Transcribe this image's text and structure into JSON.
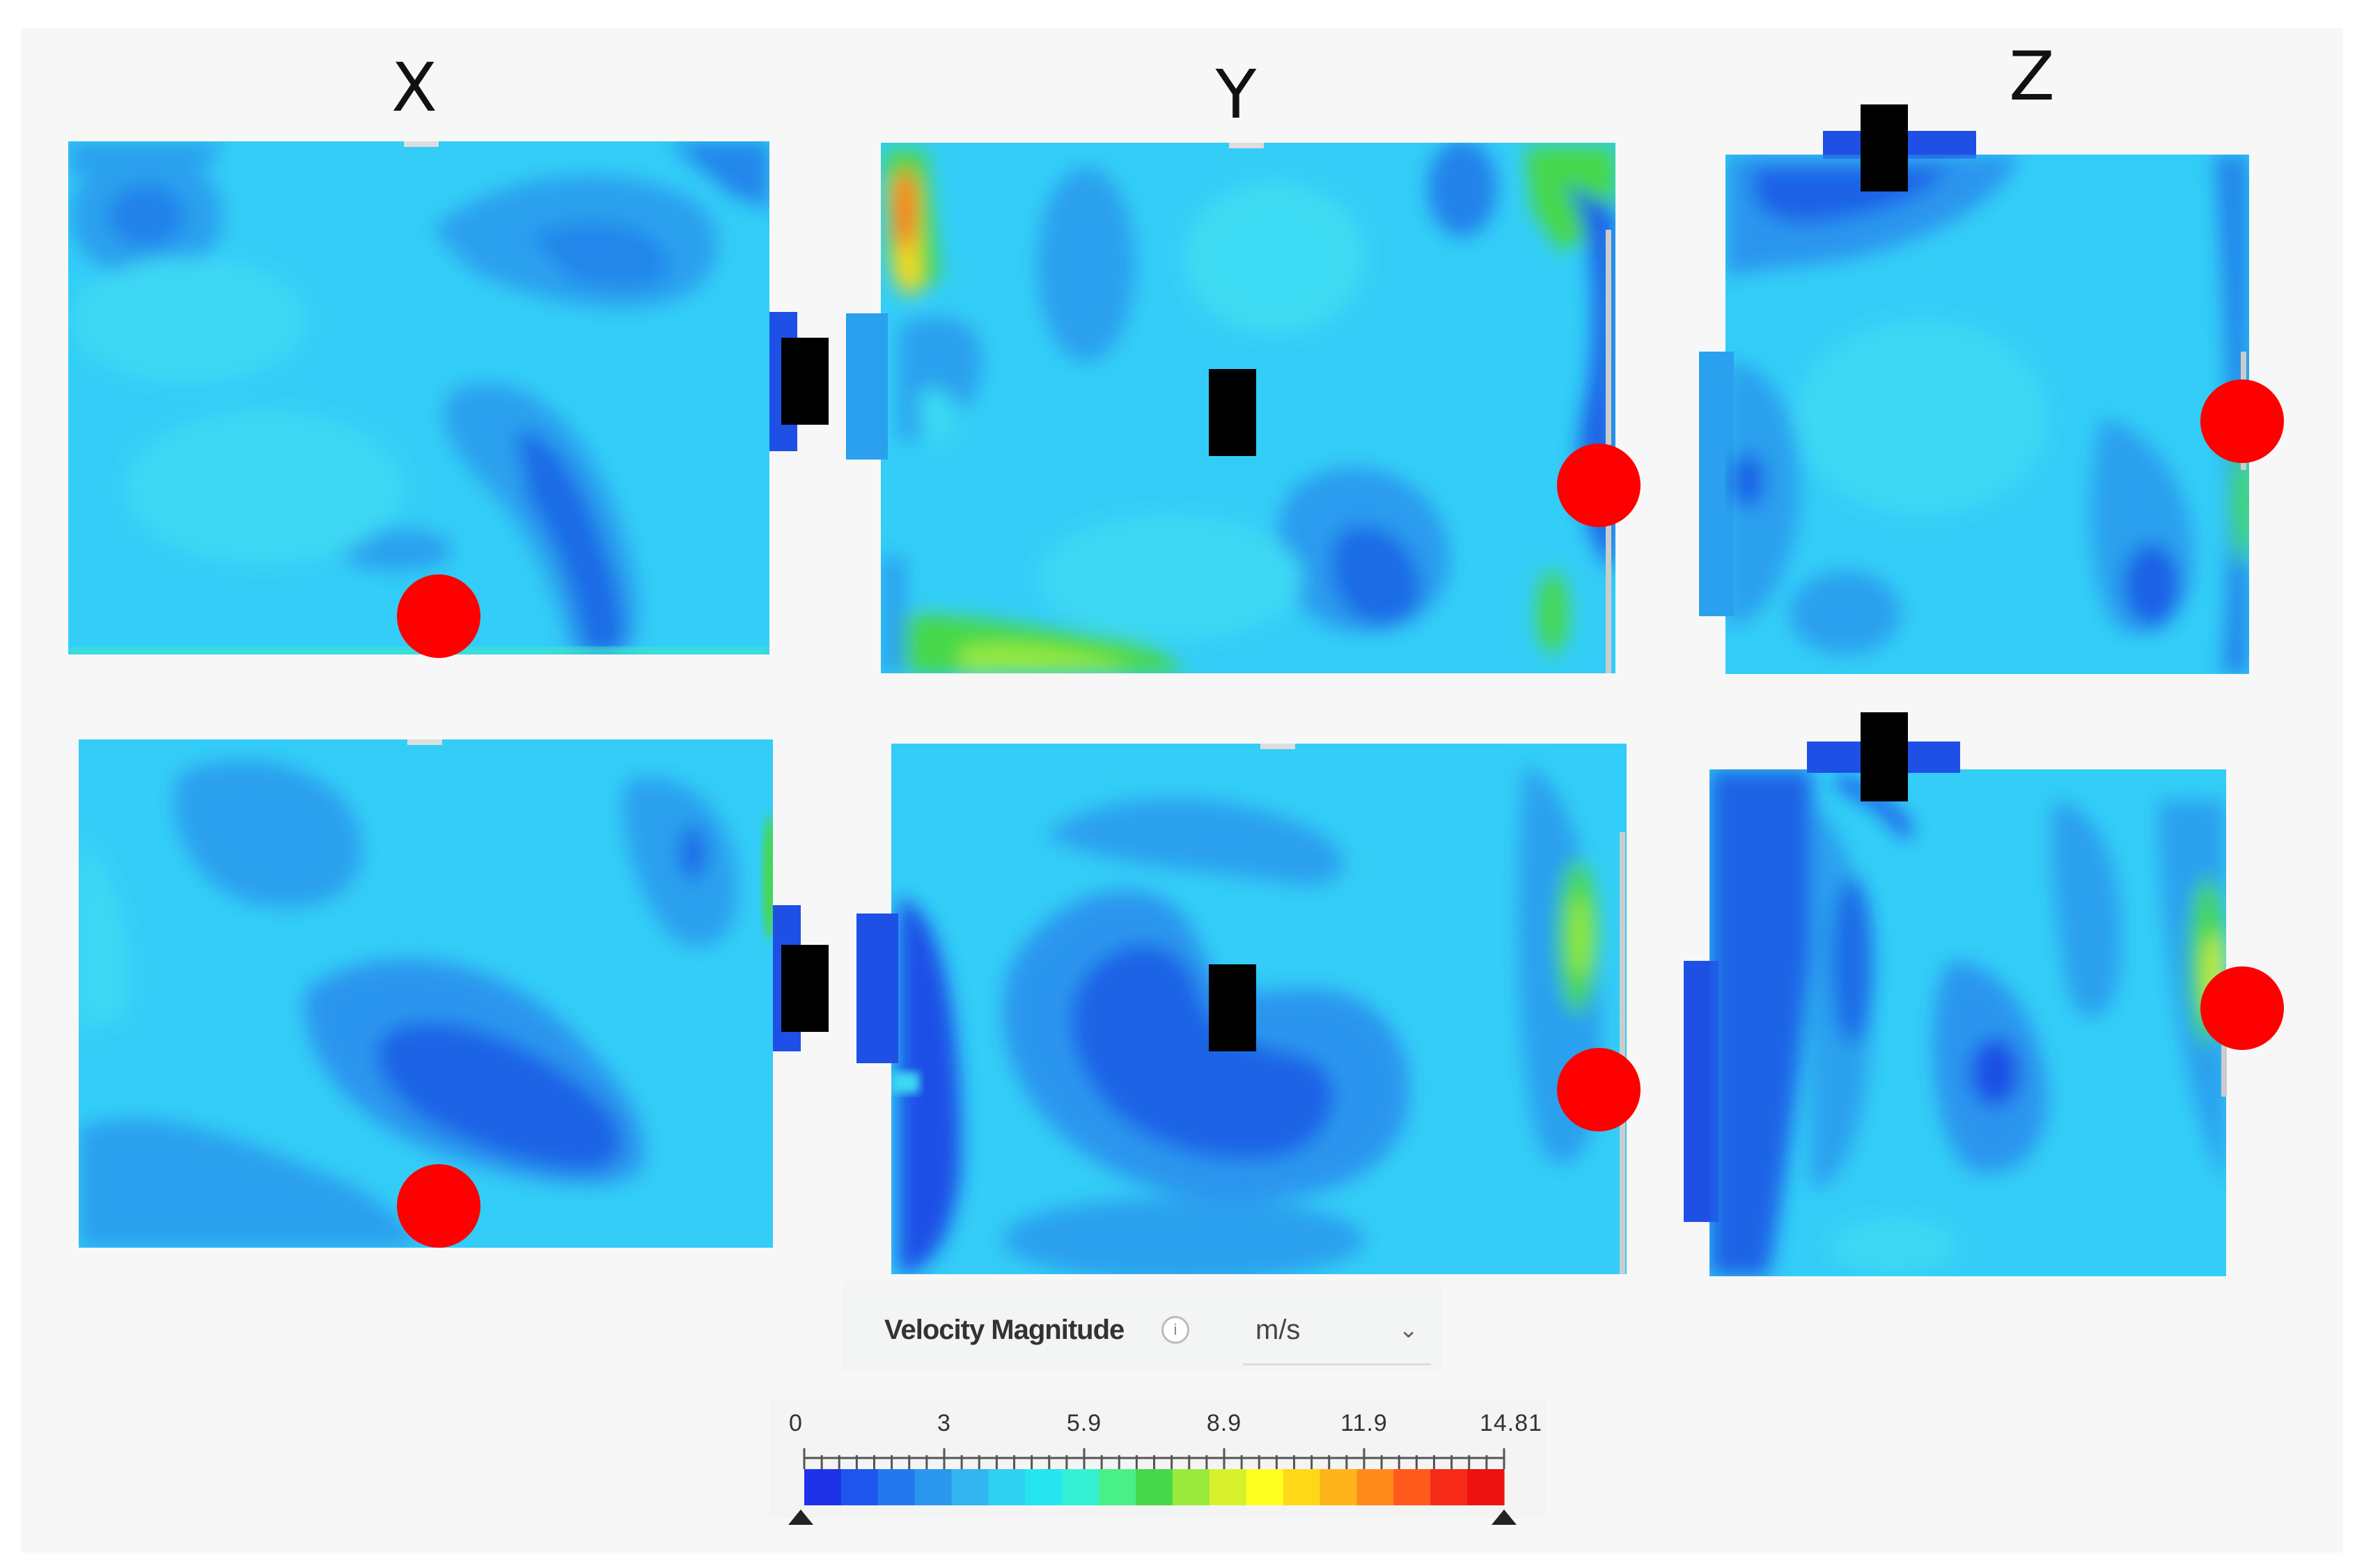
{
  "headers": {
    "x": "X",
    "y": "Y",
    "z": "Z"
  },
  "legend": {
    "title": "Velocity Magnitude",
    "info_icon": "info-icon",
    "unit": "m/s",
    "dropdown_icon": "chevron-down-icon",
    "ticks": [
      "0",
      "3",
      "5.9",
      "8.9",
      "11.9",
      "14.81"
    ],
    "range": [
      0,
      14.81
    ],
    "colors": [
      "#1f32e8",
      "#1e55ec",
      "#2377ef",
      "#2a97ef",
      "#33b5f0",
      "#2fd0f2",
      "#27e5f0",
      "#33f1d2",
      "#49f08a",
      "#46d84a",
      "#9aea3e",
      "#d8f12e",
      "#ffff22",
      "#ffd918",
      "#ffb41a",
      "#ff8a1c",
      "#ff5a1c",
      "#f52a18",
      "#ee1111"
    ]
  },
  "markers": {
    "probe_color": "#ff0000",
    "inlet_color": "#000000",
    "background_fluid": "#33ccf6",
    "vortex_color": "#1e64e6"
  }
}
